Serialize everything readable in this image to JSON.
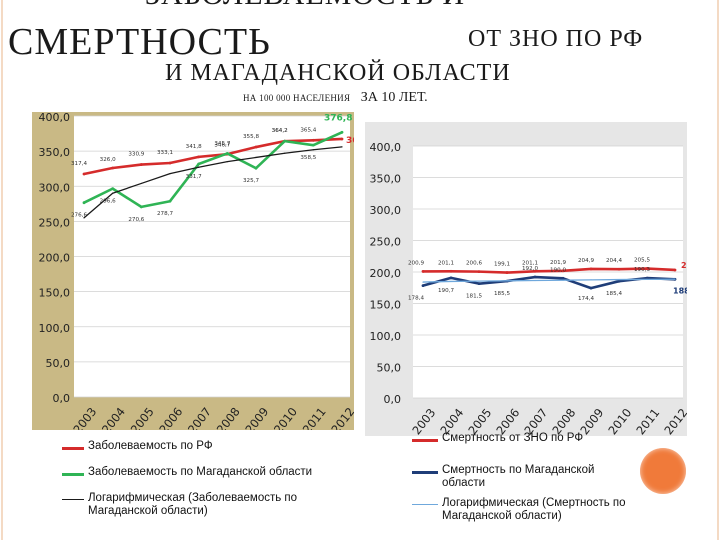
{
  "slide": {
    "title_line0": "ЗАБОЛЕВАЕМОСТЬ И",
    "title_line1a": "СМЕРТНОСТЬ",
    "title_line1b": "ОТ ЗНО ПО РФ",
    "title_line2": "И МАГАДАНСКОЙ ОБЛАСТИ",
    "subtitle_small": "НА 100 000 НАСЕЛЕНИЯ",
    "subtitle_big": "ЗА 10 ЛЕТ."
  },
  "chart_data": [
    {
      "type": "line",
      "categories": [
        "2003",
        "2004",
        "2005",
        "2006",
        "2007",
        "2008",
        "2009",
        "2010",
        "2011",
        "2012"
      ],
      "ylim": [
        0,
        400
      ],
      "yticks": [
        "0,0",
        "50,0",
        "100,0",
        "150,0",
        "200,0",
        "250,0",
        "300,0",
        "350,0",
        "400,0"
      ],
      "grid": true,
      "legend_position": "bottom",
      "background": "#c9b985",
      "series": [
        {
          "name": "Заболеваемость по РФ",
          "color": "#d52b2b",
          "values": [
            317.4,
            326.0,
            330.9,
            333.1,
            341.8,
            345.7,
            355.8,
            364.2,
            365.4,
            367.3
          ],
          "labels": [
            "317,4",
            "326,0",
            "330,9",
            "333,1",
            "341,8",
            "345,7",
            "355,8",
            "364,2",
            "365,4",
            "367,3"
          ]
        },
        {
          "name": "Заболеваемость по Магаданской области",
          "color": "#2fb455",
          "values": [
            276.6,
            296.6,
            270.6,
            278.7,
            331.7,
            346.7,
            325.7,
            364.2,
            358.5,
            376.8
          ],
          "labels": [
            "276,6",
            "296,6",
            "270,6",
            "278,7",
            "331,7",
            "346,7",
            "325,7",
            "364,2",
            "358,5",
            "376,8"
          ]
        },
        {
          "name": "Логарифмическая (Заболеваемость по Магаданской области)",
          "color": "#1a1a1a",
          "values": [
            255,
            290,
            304,
            318,
            327,
            335,
            341,
            347,
            352,
            356
          ],
          "labels": []
        }
      ]
    },
    {
      "type": "line",
      "categories": [
        "2003",
        "2004",
        "2005",
        "2006",
        "2007",
        "2008",
        "2009",
        "2010",
        "2011",
        "2012"
      ],
      "ylim": [
        0,
        400
      ],
      "yticks": [
        "0,0",
        "50,0",
        "100,0",
        "150,0",
        "200,0",
        "250,0",
        "300,0",
        "350,0",
        "400,0"
      ],
      "grid": true,
      "legend_position": "bottom",
      "background": "#e6e6e6",
      "series": [
        {
          "name": "Смертность от ЗНО по РФ",
          "color": "#d52b2b",
          "values": [
            200.9,
            201.1,
            200.6,
            199.1,
            201.1,
            201.9,
            204.9,
            204.4,
            205.5,
            203.2
          ],
          "labels": [
            "200,9",
            "201,1",
            "200,6",
            "199,1",
            "201,1",
            "201,9",
            "204,9",
            "204,4",
            "205,5",
            "203,2"
          ]
        },
        {
          "name": "Смертность по Магаданской области",
          "color": "#1f3d78",
          "values": [
            178.4,
            190.7,
            181.5,
            185.5,
            192.0,
            190.0,
            174.4,
            185.4,
            190.3,
            188.4
          ],
          "labels": [
            "178,4",
            "190,7",
            "181,5",
            "185,5",
            "192,0",
            "190,0",
            "174,4",
            "185,4",
            "190,3",
            "188,4"
          ]
        },
        {
          "name": "Логарифмическая (Смертность по Магаданской области)",
          "color": "#6fa8dc",
          "values": [
            184,
            185,
            185.5,
            186,
            186.5,
            187,
            187.5,
            188,
            188.3,
            188.6
          ],
          "labels": []
        }
      ]
    }
  ]
}
